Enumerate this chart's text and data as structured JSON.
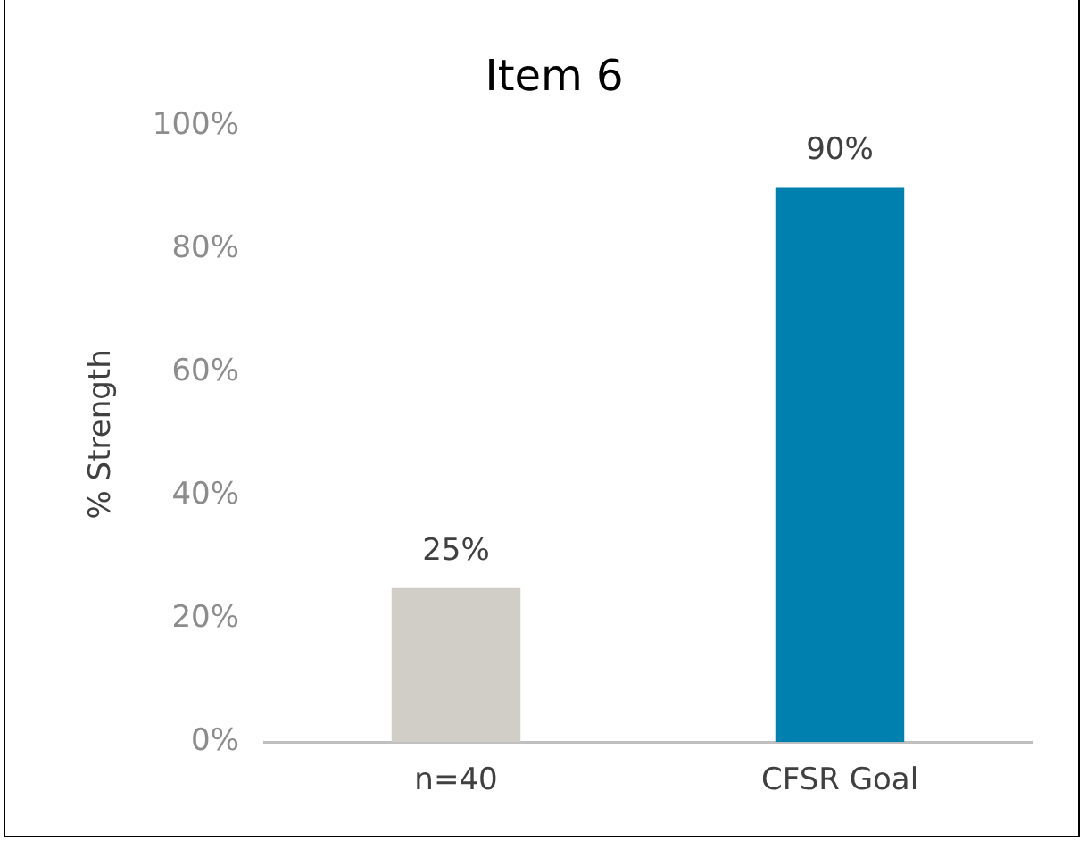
{
  "chart_data": {
    "type": "bar",
    "title": "Item 6",
    "ylabel": "% Strength",
    "categories": [
      "n=40",
      "CFSR Goal"
    ],
    "values": [
      25,
      90
    ],
    "colors": [
      "#d0cec6",
      "#0080ae"
    ],
    "ylim": [
      0,
      100
    ],
    "yticks": [
      {
        "value": 0,
        "label": "0%"
      },
      {
        "value": 20,
        "label": "20%"
      },
      {
        "value": 40,
        "label": "40%"
      },
      {
        "value": 60,
        "label": "60%"
      },
      {
        "value": 80,
        "label": "80%"
      },
      {
        "value": 100,
        "label": "100%"
      }
    ],
    "value_labels": [
      "25%",
      "90%"
    ],
    "grid": false,
    "legend": false
  }
}
